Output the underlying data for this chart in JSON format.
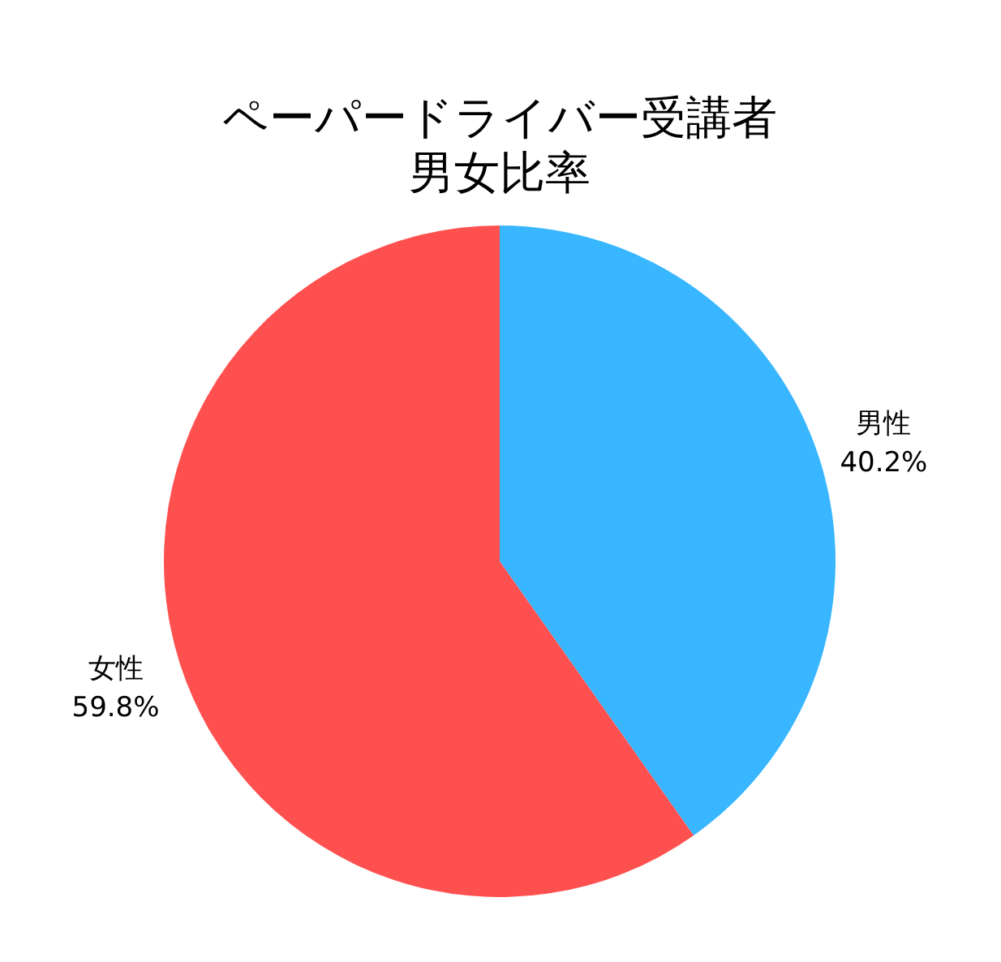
{
  "chart_data": {
    "type": "pie",
    "title": "ペーパードライバー受講者",
    "subtitle": "男女比率",
    "categories": [
      "男性",
      "女性"
    ],
    "values": [
      40.2,
      59.8
    ],
    "value_labels": [
      "40.2%",
      "59.8%"
    ],
    "colors": [
      "#38b6ff",
      "#ff5050"
    ]
  }
}
